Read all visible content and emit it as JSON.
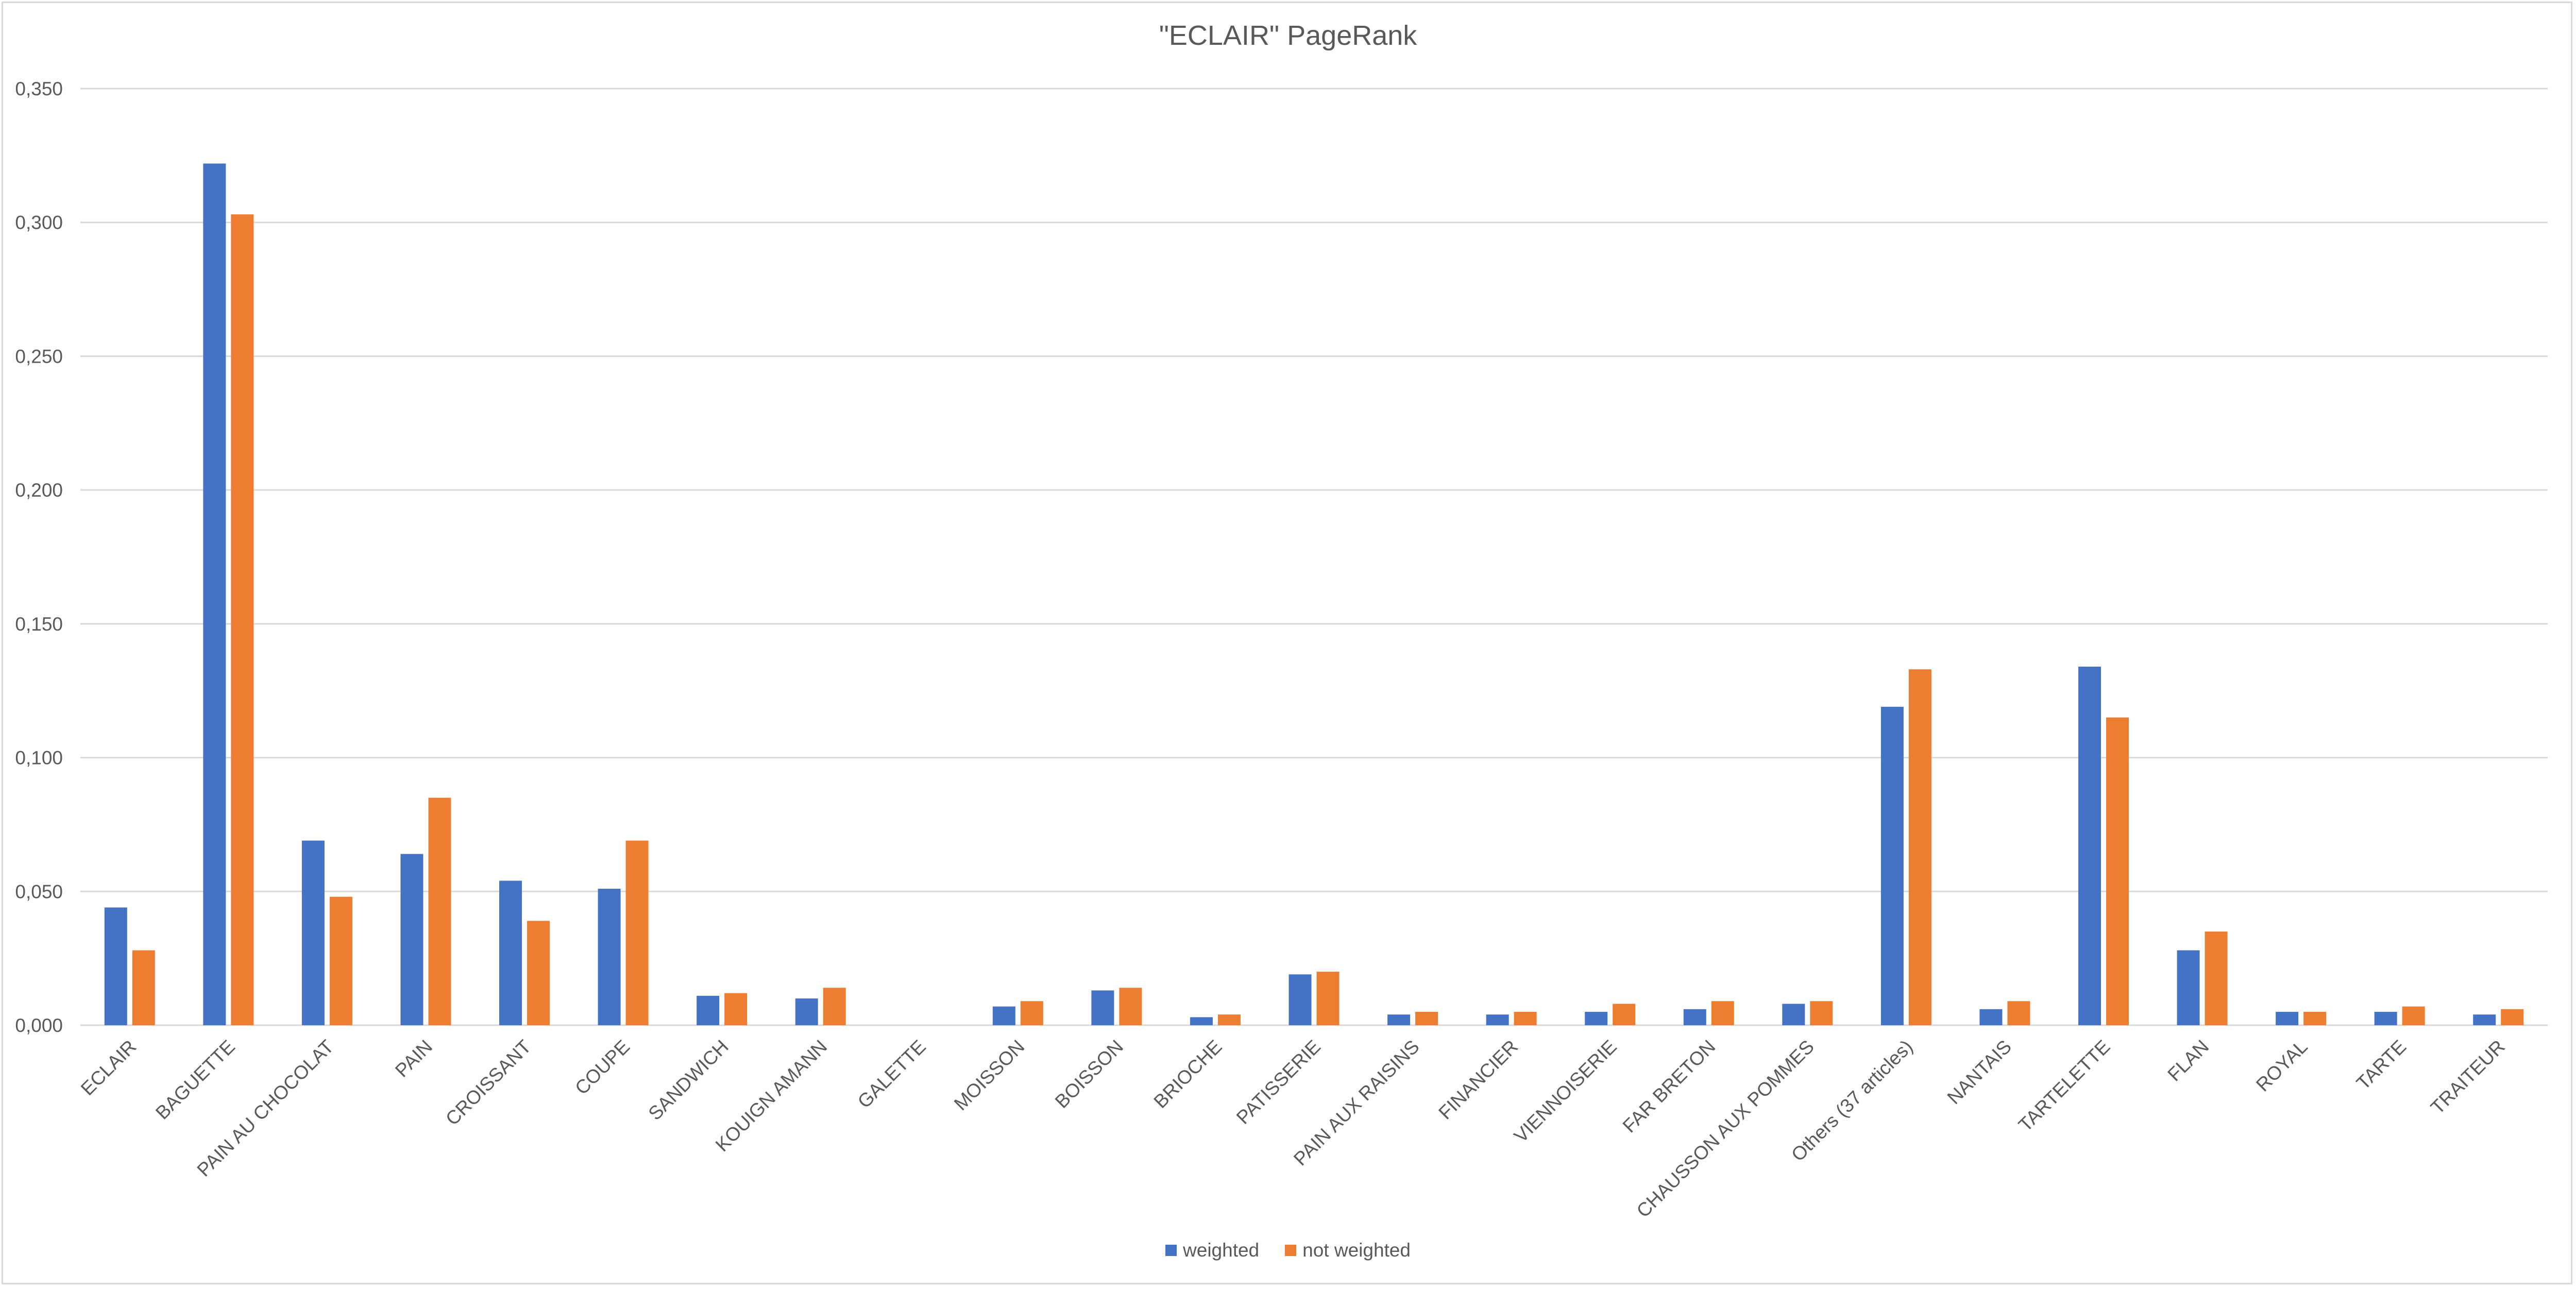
{
  "chart_data": {
    "type": "bar",
    "title": "\"ECLAIR\" PageRank",
    "xlabel": "",
    "ylabel": "",
    "ylim": [
      0,
      0.35
    ],
    "yticks": [
      "0,000",
      "0,050",
      "0,100",
      "0,150",
      "0,200",
      "0,250",
      "0,300",
      "0,350"
    ],
    "ytick_values": [
      0,
      0.05,
      0.1,
      0.15,
      0.2,
      0.25,
      0.3,
      0.35
    ],
    "grid": true,
    "legend_position": "bottom",
    "categories": [
      "ECLAIR",
      "BAGUETTE",
      "PAIN AU CHOCOLAT",
      "PAIN",
      "CROISSANT",
      "COUPE",
      "SANDWICH",
      "KOUIGN AMANN",
      "GALETTE",
      "MOISSON",
      "BOISSON",
      "BRIOCHE",
      "PATISSERIE",
      "PAIN AUX RAISINS",
      "FINANCIER",
      "VIENNOISERIE",
      "FAR BRETON",
      "CHAUSSON AUX POMMES",
      "Others (37 articles)",
      "NANTAIS",
      "TARTELETTE",
      "FLAN",
      "ROYAL",
      "TARTE",
      "TRAITEUR"
    ],
    "series": [
      {
        "name": "weighted",
        "color": "#4472c4",
        "values": [
          0.044,
          0.322,
          0.069,
          0.064,
          0.054,
          0.051,
          0.011,
          0.01,
          0.0,
          0.007,
          0.013,
          0.003,
          0.019,
          0.004,
          0.004,
          0.005,
          0.006,
          0.008,
          0.119,
          0.006,
          0.134,
          0.028,
          0.005,
          0.005,
          0.004
        ]
      },
      {
        "name": "not weighted",
        "color": "#ed7d31",
        "values": [
          0.028,
          0.303,
          0.048,
          0.085,
          0.039,
          0.069,
          0.012,
          0.014,
          0.0,
          0.009,
          0.014,
          0.004,
          0.02,
          0.005,
          0.005,
          0.008,
          0.009,
          0.009,
          0.133,
          0.009,
          0.115,
          0.035,
          0.005,
          0.007,
          0.006
        ]
      }
    ]
  }
}
